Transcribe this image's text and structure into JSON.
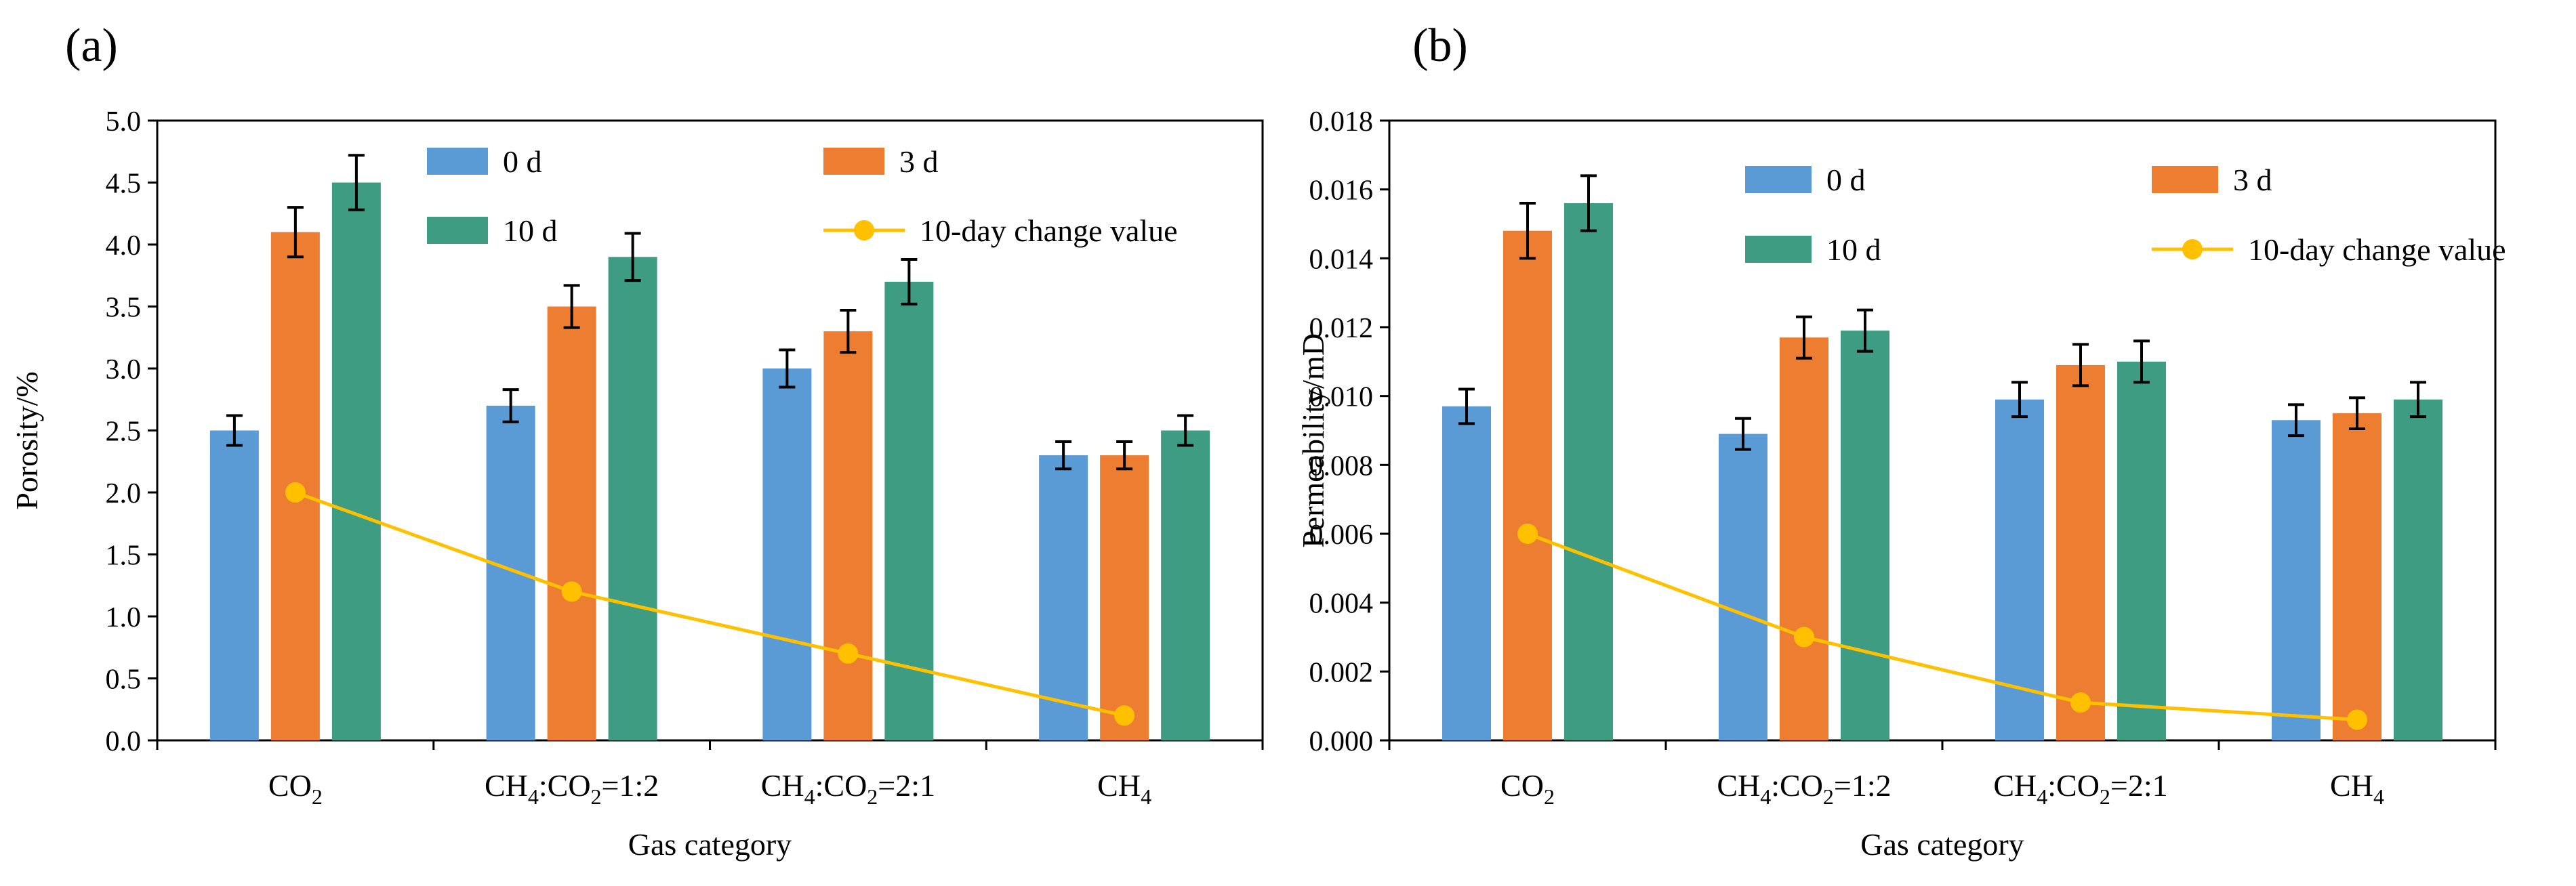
{
  "colors": {
    "d0": "#5b9bd5",
    "d3": "#ed7d31",
    "d10": "#3e9c83",
    "change": "#ffc000",
    "axis": "#000000"
  },
  "chart_data": [
    {
      "panel_label": "(a)",
      "type": "bar",
      "ylabel": "Porosity/%",
      "xlabel": "Gas category",
      "ylim": [
        0,
        5.0
      ],
      "ytick_values": [
        0,
        0.5,
        1.0,
        1.5,
        2.0,
        2.5,
        3.0,
        3.5,
        4.0,
        4.5,
        5.0
      ],
      "ytick_labels": [
        "0.0",
        "0.5",
        "1.0",
        "1.5",
        "2.0",
        "2.5",
        "3.0",
        "3.5",
        "4.0",
        "4.5",
        "5.0"
      ],
      "categories": [
        {
          "main": "CO",
          "sub": "2",
          "rest": ""
        },
        {
          "main": "CH",
          "sub": "4",
          "mid": ":CO",
          "sub2": "2",
          "rest": "=1:2"
        },
        {
          "main": "CH",
          "sub": "4",
          "mid": ":CO",
          "sub2": "2",
          "rest": "=2:1"
        },
        {
          "main": "CH",
          "sub": "4",
          "rest": ""
        }
      ],
      "series": [
        {
          "name": "0 d",
          "values": [
            2.5,
            2.7,
            3.0,
            2.3
          ],
          "errors": [
            0.12,
            0.13,
            0.15,
            0.11
          ]
        },
        {
          "name": "3 d",
          "values": [
            4.1,
            3.5,
            3.3,
            2.3
          ],
          "errors": [
            0.2,
            0.17,
            0.17,
            0.11
          ]
        },
        {
          "name": "10 d",
          "values": [
            4.5,
            3.9,
            3.7,
            2.5
          ],
          "errors": [
            0.22,
            0.19,
            0.18,
            0.12
          ]
        }
      ],
      "line_series": {
        "name": "10-day change value",
        "values": [
          2.0,
          1.2,
          0.7,
          0.2
        ]
      },
      "legend": [
        "0 d",
        "3 d",
        "10 d",
        "10-day change value"
      ]
    },
    {
      "panel_label": "(b)",
      "type": "bar",
      "ylabel": "Permeability/mD",
      "xlabel": "Gas category",
      "ylim": [
        0,
        0.018
      ],
      "ytick_values": [
        0,
        0.002,
        0.004,
        0.006,
        0.008,
        0.01,
        0.012,
        0.014,
        0.016,
        0.018
      ],
      "ytick_labels": [
        "0.000",
        "0.002",
        "0.004",
        "0.006",
        "0.008",
        "0.010",
        "0.012",
        "0.014",
        "0.016",
        "0.018"
      ],
      "categories": [
        {
          "main": "CO",
          "sub": "2",
          "rest": ""
        },
        {
          "main": "CH",
          "sub": "4",
          "mid": ":CO",
          "sub2": "2",
          "rest": "=1:2"
        },
        {
          "main": "CH",
          "sub": "4",
          "mid": ":CO",
          "sub2": "2",
          "rest": "=2:1"
        },
        {
          "main": "CH",
          "sub": "4",
          "rest": ""
        }
      ],
      "series": [
        {
          "name": "0 d",
          "values": [
            0.0097,
            0.0089,
            0.0099,
            0.0093
          ],
          "errors": [
            0.0005,
            0.00045,
            0.0005,
            0.00045
          ]
        },
        {
          "name": "3 d",
          "values": [
            0.0148,
            0.0117,
            0.0109,
            0.0095
          ],
          "errors": [
            0.0008,
            0.0006,
            0.0006,
            0.00045
          ]
        },
        {
          "name": "10 d",
          "values": [
            0.0156,
            0.0119,
            0.011,
            0.0099
          ],
          "errors": [
            0.0008,
            0.0006,
            0.0006,
            0.0005
          ]
        }
      ],
      "line_series": {
        "name": "10-day change value",
        "values": [
          0.006,
          0.003,
          0.0011,
          0.0006
        ]
      },
      "legend": [
        "0 d",
        "3 d",
        "10 d",
        "10-day change value"
      ]
    }
  ]
}
